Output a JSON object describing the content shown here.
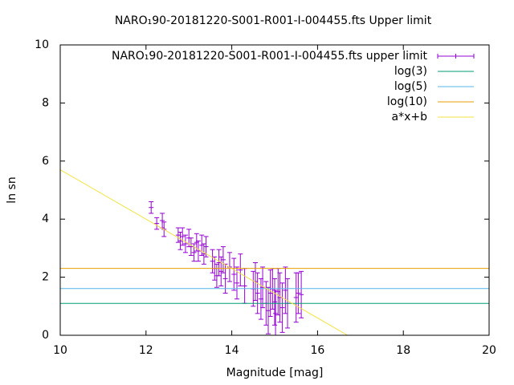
{
  "chart_data": {
    "type": "scatter",
    "title": "NARO₁90-20181220-S001-R001-I-004455.fts Upper limit",
    "x_label": "Magnitude [mag]",
    "y_label": "ln sn",
    "xlim": [
      10,
      20
    ],
    "xticks": [
      10,
      12,
      14,
      16,
      18,
      20
    ],
    "ylim": [
      0,
      10
    ],
    "yticks": [
      0,
      2,
      4,
      6,
      8,
      10
    ],
    "legend": "top-right",
    "series": [
      {
        "name": "NARO₁90-20181220-S001-R001-I-004455.fts upper limit",
        "color": "#9400d3",
        "style": "errorbars",
        "x": [
          12.12,
          12.25,
          12.38,
          12.42,
          12.75,
          12.8,
          12.85,
          12.92,
          13.0,
          13.05,
          13.12,
          13.18,
          13.22,
          13.3,
          13.35,
          13.4,
          13.55,
          13.6,
          13.65,
          13.7,
          13.75,
          13.8,
          13.85,
          13.95,
          14.05,
          14.12,
          14.2,
          14.3,
          14.5,
          14.55,
          14.6,
          14.68,
          14.72,
          14.8,
          14.85,
          14.9,
          14.95,
          15.0,
          15.02,
          15.08,
          15.12,
          15.18,
          15.25,
          15.3,
          15.5,
          15.55,
          15.62
        ],
        "values": [
          4.4,
          3.85,
          3.95,
          3.65,
          3.45,
          3.25,
          3.4,
          3.15,
          3.35,
          3.05,
          2.85,
          3.2,
          2.9,
          3.1,
          2.8,
          3.05,
          2.55,
          2.3,
          2.05,
          2.5,
          2.2,
          2.6,
          1.95,
          2.35,
          2.1,
          1.8,
          2.25,
          1.7,
          1.6,
          1.85,
          1.45,
          1.25,
          1.65,
          1.1,
          0.85,
          1.45,
          1.6,
          1.15,
          0.75,
          1.5,
          1.3,
          0.95,
          1.55,
          1.1,
          1.3,
          1.45,
          1.4
        ],
        "errors": [
          0.2,
          0.2,
          0.25,
          0.25,
          0.25,
          0.3,
          0.3,
          0.3,
          0.3,
          0.3,
          0.3,
          0.3,
          0.35,
          0.35,
          0.35,
          0.35,
          0.4,
          0.4,
          0.4,
          0.45,
          0.5,
          0.45,
          0.5,
          0.5,
          0.55,
          0.55,
          0.55,
          0.6,
          0.6,
          0.65,
          0.7,
          0.7,
          0.7,
          0.75,
          0.8,
          0.8,
          0.7,
          0.8,
          0.8,
          0.8,
          0.85,
          0.85,
          0.8,
          0.85,
          0.85,
          0.7,
          0.8
        ]
      },
      {
        "name": "log(3)",
        "color": "#009e73",
        "style": "line",
        "x": [
          10,
          20
        ],
        "values": [
          1.0986,
          1.0986
        ]
      },
      {
        "name": "log(5)",
        "color": "#56b4e9",
        "style": "line",
        "x": [
          10,
          20
        ],
        "values": [
          1.6094,
          1.6094
        ]
      },
      {
        "name": "log(10)",
        "color": "#e69f00",
        "style": "line",
        "x": [
          10,
          20
        ],
        "values": [
          2.3026,
          2.3026
        ]
      },
      {
        "name": "a*x+b",
        "color": "#f0e442",
        "style": "line",
        "x": [
          10,
          16.7
        ],
        "values": [
          5.7,
          0
        ]
      }
    ]
  }
}
